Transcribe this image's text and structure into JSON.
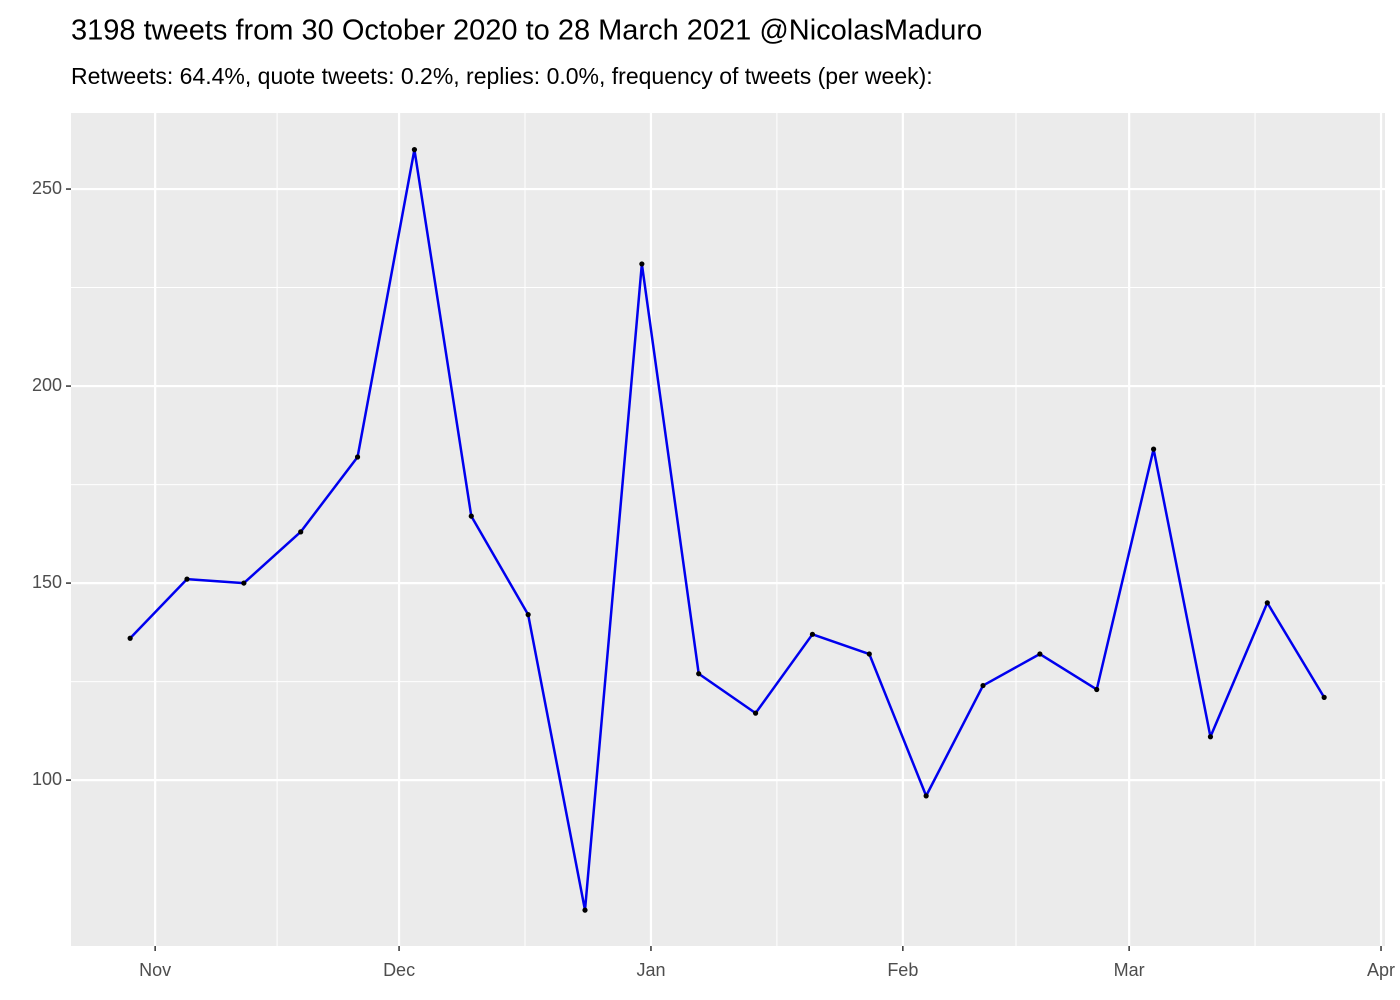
{
  "chart_data": {
    "type": "line",
    "title": "3198 tweets from 30 October 2020 to 28 March 2021 @NicolasMaduro",
    "subtitle": "Retweets: 64.4%, quote tweets: 0.2%, replies: 0.0%, frequency of tweets (per week):",
    "values": [
      136,
      151,
      150,
      163,
      182,
      260,
      167,
      142,
      67,
      231,
      127,
      117,
      137,
      132,
      96,
      124,
      132,
      123,
      184,
      111,
      145,
      121
    ],
    "color": "#0000ee",
    "point_color": "#000000",
    "xlim": [
      -1.04,
      22.07
    ],
    "xticks": [
      {
        "value": 0.44,
        "label": "Nov"
      },
      {
        "value": 4.73,
        "label": "Dec"
      },
      {
        "value": 9.16,
        "label": "Jan"
      },
      {
        "value": 13.59,
        "label": "Feb"
      },
      {
        "value": 17.57,
        "label": "Mar"
      },
      {
        "value": 22.0,
        "label": "Apr"
      }
    ],
    "ylim": [
      57.9,
      269.3
    ],
    "yticks": [
      100,
      150,
      200,
      250
    ],
    "grid": true
  }
}
